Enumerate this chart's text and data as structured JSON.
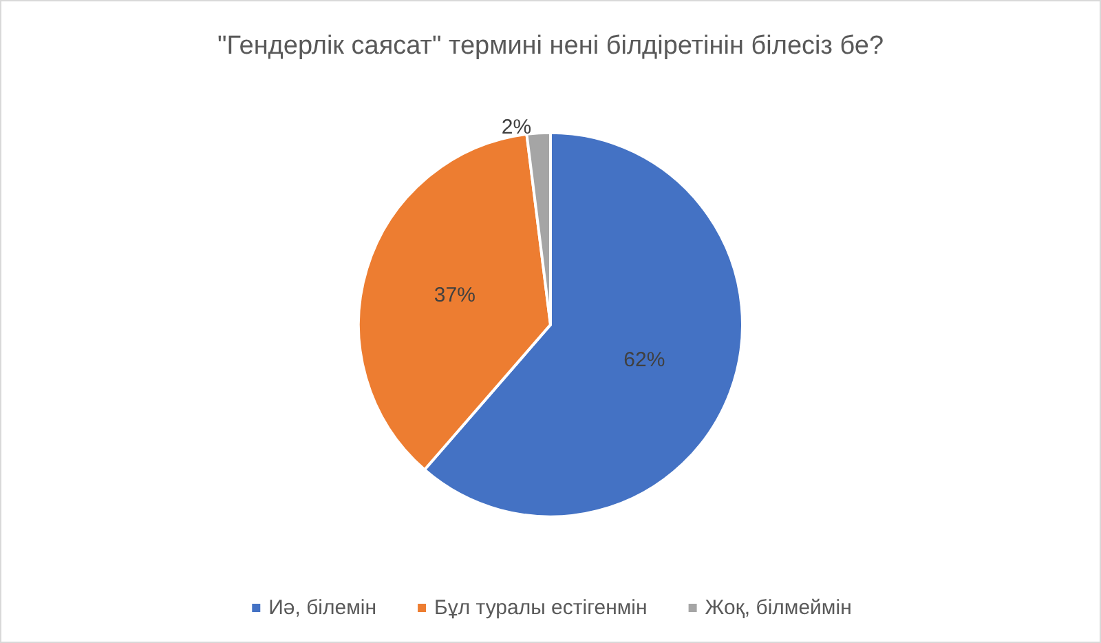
{
  "chart_data": {
    "type": "pie",
    "title": "\"Гендерлік саясат\" термині нені білдіретінін білесіз бе?",
    "categories": [
      "Иә, білемін",
      "Бұл туралы естігенмін",
      "Жоқ, білмеймін"
    ],
    "values": [
      62,
      37,
      2
    ],
    "colors": [
      "#4472c4",
      "#ed7d31",
      "#a5a5a5"
    ],
    "value_labels": [
      "62%",
      "37%",
      "2%"
    ],
    "legend": "bottom"
  }
}
